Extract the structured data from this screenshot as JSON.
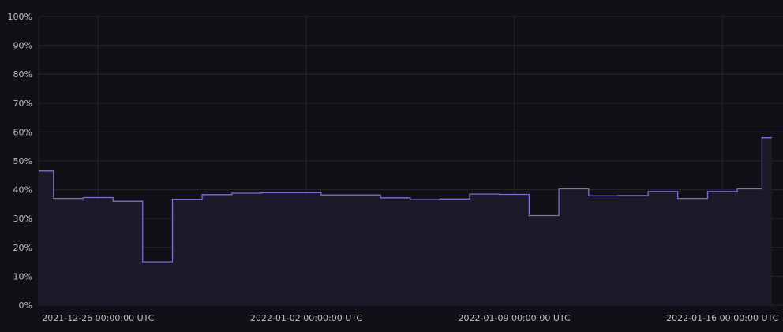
{
  "chart_data": {
    "type": "area",
    "step": true,
    "ylim": [
      0,
      100
    ],
    "y_ticks": [
      0,
      10,
      20,
      30,
      40,
      50,
      60,
      70,
      80,
      90,
      100
    ],
    "y_tick_labels": [
      "0%",
      "10%",
      "20%",
      "30%",
      "40%",
      "50%",
      "60%",
      "70%",
      "80%",
      "90%",
      "100%"
    ],
    "x_ticks": [
      "2021-12-26",
      "2022-01-02",
      "2022-01-09",
      "2022-01-16"
    ],
    "x_tick_labels": [
      "2021-12-26 00:00:00 UTC",
      "2022-01-02 00:00:00 UTC",
      "2022-01-09 00:00:00 UTC",
      "2022-01-16 00:00:00 UTC"
    ],
    "x_range": [
      "2021-12-24",
      "2022-01-17T16:00"
    ],
    "grid": true,
    "colors": {
      "line": "#7b6fd6",
      "fill": "#1b1a28",
      "grid": "#24242c",
      "background": "#101016"
    },
    "series": [
      {
        "points": [
          [
            "2021-12-24",
            46.5
          ],
          [
            "2021-12-24T12:00",
            37.0
          ],
          [
            "2021-12-25T12:00",
            37.3
          ],
          [
            "2021-12-26T12:00",
            36.0
          ],
          [
            "2021-12-27T12:00",
            15.0
          ],
          [
            "2021-12-28T12:00",
            36.7
          ],
          [
            "2021-12-29T12:00",
            38.3
          ],
          [
            "2021-12-30T12:00",
            38.8
          ],
          [
            "2021-12-31T12:00",
            39.0
          ],
          [
            "2022-01-01T12:00",
            39.0
          ],
          [
            "2022-01-02T12:00",
            38.2
          ],
          [
            "2022-01-03T12:00",
            38.2
          ],
          [
            "2022-01-04T12:00",
            37.2
          ],
          [
            "2022-01-05T12:00",
            36.6
          ],
          [
            "2022-01-06T12:00",
            36.8
          ],
          [
            "2022-01-07T12:00",
            38.5
          ],
          [
            "2022-01-08T12:00",
            38.4
          ],
          [
            "2022-01-09T12:00",
            31.0
          ],
          [
            "2022-01-10T12:00",
            40.3
          ],
          [
            "2022-01-11T12:00",
            37.9
          ],
          [
            "2022-01-12T12:00",
            38.0
          ],
          [
            "2022-01-13T12:00",
            39.4
          ],
          [
            "2022-01-14T12:00",
            37.0
          ],
          [
            "2022-01-15T12:00",
            39.4
          ],
          [
            "2022-01-16T12:00",
            40.3
          ],
          [
            "2022-01-17T08:00",
            58.0
          ],
          [
            "2022-01-17T16:00",
            58.0
          ]
        ]
      }
    ]
  }
}
